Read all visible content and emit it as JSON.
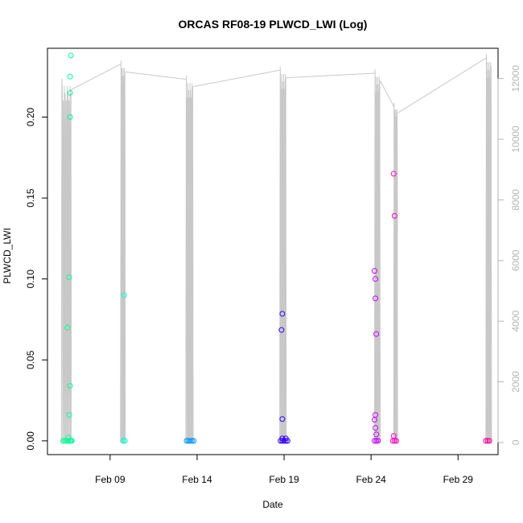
{
  "chart_data": {
    "type": "scatter",
    "title": "ORCAS RF08-19 PLWCD_LWI (Log)",
    "xlabel": "Date",
    "ylabel": "PLWCD_LWI",
    "x_ticks": [
      "Feb 09",
      "Feb 14",
      "Feb 19",
      "Feb 24",
      "Feb 29"
    ],
    "y_ticks": [
      "0.00",
      "0.05",
      "0.10",
      "0.15",
      "0.20"
    ],
    "y2_ticks": [
      "0",
      "2000",
      "4000",
      "6000",
      "8000",
      "10000",
      "12000"
    ],
    "xlim_days": [
      5.4,
      31.3
    ],
    "ylim": [
      -0.0085,
      0.2425
    ],
    "y2lim": [
      -400,
      13000
    ],
    "colors": {
      "axis": "#000000",
      "secondary_axis": "#b5b5b5",
      "altitude_line": "#c8c8c8"
    },
    "series": [
      {
        "color": "#00ff99",
        "points": [
          [
            6.3,
            0.0
          ],
          [
            6.4,
            0.0
          ],
          [
            6.5,
            0.0
          ],
          [
            6.6,
            0.0
          ],
          [
            6.7,
            0.0
          ],
          [
            6.75,
            0.0
          ],
          [
            6.8,
            0.0
          ],
          [
            6.55,
            0.07
          ],
          [
            6.65,
            0.101
          ],
          [
            6.7,
            0.2
          ],
          [
            6.7,
            0.215
          ],
          [
            6.7,
            0.225
          ],
          [
            6.75,
            0.238
          ],
          [
            6.7,
            0.034
          ],
          [
            6.65,
            0.016
          ],
          [
            6.6,
            0.002
          ]
        ]
      },
      {
        "color": "#00ffcc",
        "points": [
          [
            9.75,
            0.0
          ],
          [
            9.85,
            0.0
          ],
          [
            9.8,
            0.09
          ]
        ]
      },
      {
        "color": "#0099ff",
        "points": [
          [
            13.4,
            0.0
          ],
          [
            13.5,
            0.0
          ],
          [
            13.6,
            0.0
          ],
          [
            13.7,
            0.0
          ],
          [
            13.8,
            0.0
          ]
        ]
      },
      {
        "color": "#3300ff",
        "points": [
          [
            18.8,
            0.0
          ],
          [
            18.9,
            0.0
          ],
          [
            19.0,
            0.0
          ],
          [
            19.1,
            0.0
          ],
          [
            19.2,
            0.0
          ],
          [
            18.9,
            0.0785
          ],
          [
            18.85,
            0.0685
          ],
          [
            18.9,
            0.0135
          ],
          [
            18.9,
            0.0015
          ],
          [
            19.1,
            0.0015
          ]
        ]
      },
      {
        "color": "#cc00ff",
        "points": [
          [
            24.2,
            0.0
          ],
          [
            24.3,
            0.0
          ],
          [
            24.4,
            0.0
          ],
          [
            24.2,
            0.105
          ],
          [
            24.25,
            0.1
          ],
          [
            24.25,
            0.088
          ],
          [
            24.3,
            0.066
          ],
          [
            24.25,
            0.016
          ],
          [
            24.2,
            0.013
          ],
          [
            24.25,
            0.008
          ],
          [
            24.3,
            0.004
          ]
        ]
      },
      {
        "color": "#ff00cc",
        "points": [
          [
            25.25,
            0.0
          ],
          [
            25.35,
            0.0
          ],
          [
            25.45,
            0.0
          ],
          [
            25.3,
            0.165
          ],
          [
            25.35,
            0.139
          ],
          [
            25.3,
            0.003
          ]
        ]
      },
      {
        "color": "#ff0099",
        "points": [
          [
            30.6,
            0.0
          ],
          [
            30.7,
            0.0
          ],
          [
            30.8,
            0.0
          ]
        ]
      }
    ],
    "altitude": {
      "flights": [
        {
          "start": 6.2,
          "end": 6.75,
          "max": 12000
        },
        {
          "start": 9.6,
          "end": 9.85,
          "max": 12600
        },
        {
          "start": 13.35,
          "end": 13.75,
          "max": 12100
        },
        {
          "start": 18.75,
          "end": 19.1,
          "max": 12400
        },
        {
          "start": 24.2,
          "end": 24.5,
          "max": 12300
        },
        {
          "start": 25.3,
          "end": 25.5,
          "max": 11200
        },
        {
          "start": 30.6,
          "end": 30.9,
          "max": 12800
        }
      ]
    }
  }
}
